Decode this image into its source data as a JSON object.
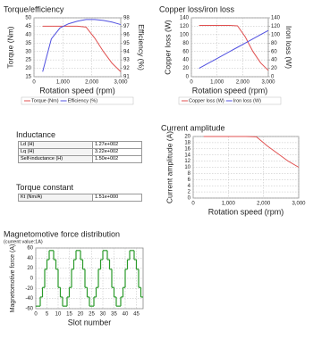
{
  "chart_data": [
    {
      "type": "line",
      "title": "Torque/efficiency",
      "xlabel": "Rotation speed (rpm)",
      "ylabel": "Torque (Nm)",
      "y2label": "Efficiency (%)",
      "x": [
        300,
        600,
        900,
        1200,
        1500,
        1800,
        2100,
        2400,
        2700,
        3000
      ],
      "series": [
        {
          "name": "Torque (Nm)",
          "color": "#e05050",
          "values": [
            45,
            45,
            45,
            45,
            45,
            44.5,
            38,
            30,
            23,
            18
          ]
        },
        {
          "name": "Efficiency (%)",
          "color": "#5050e0",
          "axis": "y2",
          "values": [
            91.6,
            95.5,
            96.8,
            97.3,
            97.6,
            97.8,
            97.8,
            97.7,
            97.5,
            97.2
          ]
        }
      ],
      "xlim": [
        0,
        3000
      ],
      "xticks": [
        0,
        {
          "value": 1000,
          "label": "1,000"
        },
        {
          "value": 2000,
          "label": "2,000"
        },
        {
          "value": 3000,
          "label": "3,000"
        }
      ],
      "ylim": [
        15,
        50
      ],
      "yticks": [
        15,
        20,
        25,
        30,
        35,
        40,
        45,
        50
      ],
      "y2lim": [
        91,
        98
      ],
      "y2ticks": [
        91,
        92,
        93,
        94,
        95,
        96,
        97,
        98
      ],
      "grid": true,
      "legend": "bottom"
    },
    {
      "type": "line",
      "title": "Copper loss/iron loss",
      "xlabel": "Rotation speed (rpm)",
      "ylabel": "Copper loss (W)",
      "y2label": "Iron loss (W)",
      "x": [
        300,
        600,
        900,
        1200,
        1500,
        1800,
        2100,
        2400,
        2700,
        3000
      ],
      "series": [
        {
          "name": "Copper loss (W)",
          "color": "#e05050",
          "values": [
            122,
            122,
            122,
            122,
            122,
            121,
            95,
            60,
            33,
            15
          ]
        },
        {
          "name": "Iron loss (W)",
          "color": "#5050e0",
          "axis": "y2",
          "values": [
            20,
            30,
            40,
            50,
            60,
            70,
            80,
            90,
            100,
            110
          ]
        }
      ],
      "xlim": [
        0,
        3000
      ],
      "xticks": [
        0,
        {
          "value": 1000,
          "label": "1,000"
        },
        {
          "value": 2000,
          "label": "2,000"
        },
        {
          "value": 3000,
          "label": "3,000"
        }
      ],
      "ylim": [
        0,
        140
      ],
      "yticks": [
        0,
        20,
        40,
        60,
        80,
        100,
        120,
        140
      ],
      "y2lim": [
        0,
        140
      ],
      "y2ticks": [
        0,
        20,
        40,
        60,
        80,
        100,
        120,
        140
      ],
      "grid": true,
      "legend": "bottom"
    },
    {
      "type": "line",
      "title": "Current amplitude",
      "xlabel": "Rotation speed (rpm)",
      "ylabel": "Current amplitude (A)",
      "x": [
        300,
        600,
        900,
        1200,
        1500,
        1800,
        2100,
        2400,
        2700,
        3000
      ],
      "series": [
        {
          "color": "#e05050",
          "values": [
            20,
            20,
            20,
            20,
            20,
            19.9,
            17,
            14.5,
            12,
            10
          ]
        }
      ],
      "xlim": [
        0,
        3000
      ],
      "xticks": [
        0,
        {
          "value": 1000,
          "label": "1,000"
        },
        {
          "value": 2000,
          "label": "2,000"
        },
        {
          "value": 3000,
          "label": "3,000"
        }
      ],
      "ylim": [
        0,
        20
      ],
      "yticks": [
        0,
        2,
        4,
        6,
        8,
        10,
        12,
        14,
        16,
        18,
        20
      ],
      "grid": true
    },
    {
      "type": "step",
      "title": "Magnetomotive force distribution",
      "subtitle": "(current value:1A)",
      "xlabel": "Slot number",
      "ylabel": "Magnetomotive force (A)",
      "x": [
        0,
        1,
        2,
        3,
        4,
        5,
        6,
        7,
        8,
        9,
        10,
        11,
        12,
        13,
        14,
        15,
        16,
        17,
        18,
        19,
        20,
        21,
        22,
        23,
        24,
        25,
        26,
        27,
        28,
        29,
        30,
        31,
        32,
        33,
        34,
        35,
        36,
        37,
        38,
        39,
        40,
        41,
        42,
        43,
        44,
        45,
        46,
        47
      ],
      "series": [
        {
          "color": "#2a9a2a",
          "values": [
            -55,
            -55,
            -37,
            -18,
            18,
            37,
            55,
            55,
            37,
            18,
            -18,
            -37,
            -55,
            -55,
            -37,
            -18,
            18,
            37,
            55,
            55,
            37,
            18,
            -18,
            -37,
            -55,
            -55,
            -37,
            -18,
            18,
            37,
            55,
            55,
            37,
            18,
            -18,
            -37,
            -55,
            -55,
            -37,
            -18,
            18,
            37,
            55,
            55,
            37,
            18,
            -18,
            -37
          ]
        }
      ],
      "xlim": [
        0,
        48
      ],
      "xticks": [
        0,
        5,
        10,
        15,
        20,
        25,
        30,
        35,
        40,
        45
      ],
      "ylim": [
        -60,
        60
      ],
      "yticks": [
        -60,
        -40,
        -20,
        0,
        20,
        40,
        60
      ],
      "grid": true
    }
  ],
  "inductance": {
    "title": "Inductance",
    "rows": [
      [
        "Ld (H)",
        "1.27e+002"
      ],
      [
        "Lq (H)",
        "3.22e+002"
      ],
      [
        "Self-inductance (H)",
        "1.50e+002"
      ]
    ]
  },
  "torque_constant": {
    "title": "Torque constant",
    "rows": [
      [
        "Kt (Nm/A)",
        "1.51e+000"
      ]
    ]
  }
}
